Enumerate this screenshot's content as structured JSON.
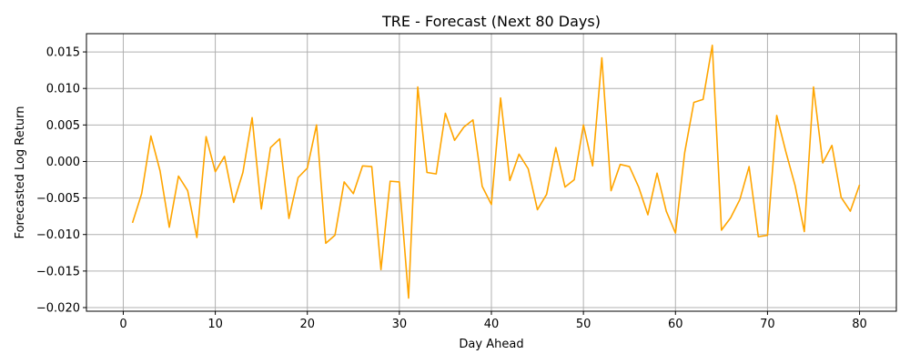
{
  "chart_data": {
    "type": "line",
    "title": "TRE - Forecast (Next 80 Days)",
    "xlabel": "Day Ahead",
    "ylabel": "Forecasted Log Return",
    "xlim": [
      -4,
      84
    ],
    "ylim": [
      -0.0205,
      0.0175
    ],
    "xticks": [
      0,
      10,
      20,
      30,
      40,
      50,
      60,
      70,
      80
    ],
    "xtick_labels": [
      "0",
      "10",
      "20",
      "30",
      "40",
      "50",
      "60",
      "70",
      "80"
    ],
    "yticks": [
      -0.02,
      -0.015,
      -0.01,
      -0.005,
      0.0,
      0.005,
      0.01,
      0.015
    ],
    "ytick_labels": [
      "−0.020",
      "−0.015",
      "−0.010",
      "−0.005",
      "0.000",
      "0.005",
      "0.010",
      "0.015"
    ],
    "grid": true,
    "line_color": "#ffa500",
    "series": [
      {
        "x": [
          1,
          2,
          3,
          4,
          5,
          6,
          7,
          8,
          9,
          10,
          11,
          12,
          13,
          14,
          15,
          16,
          17,
          18,
          19,
          20,
          21,
          22,
          23,
          24,
          25,
          26,
          27,
          28,
          29,
          30,
          31,
          32,
          33,
          34,
          35,
          36,
          37,
          38,
          39,
          40,
          41,
          42,
          43,
          44,
          45,
          46,
          47,
          48,
          49,
          50,
          51,
          52,
          53,
          54,
          55,
          56,
          57,
          58,
          59,
          60,
          61,
          62,
          63,
          64,
          65,
          66,
          67,
          68,
          69,
          70,
          71,
          72,
          73,
          74,
          75,
          76,
          77,
          78,
          79,
          80
        ],
        "values": [
          -0.0084,
          -0.0044,
          0.0035,
          -0.0013,
          -0.009,
          -0.002,
          -0.004,
          -0.0104,
          0.0034,
          -0.0014,
          0.0007,
          -0.0056,
          -0.0015,
          0.006,
          -0.0065,
          0.0019,
          0.0031,
          -0.0078,
          -0.0022,
          -0.0009,
          0.005,
          -0.0112,
          -0.0101,
          -0.0028,
          -0.0044,
          -0.0006,
          -0.0007,
          -0.0148,
          -0.0027,
          -0.0028,
          -0.0187,
          0.0102,
          -0.0015,
          -0.0017,
          0.0066,
          0.0029,
          0.0047,
          0.0057,
          -0.0034,
          -0.0059,
          0.0087,
          -0.0026,
          0.001,
          -0.001,
          -0.0066,
          -0.0045,
          0.0019,
          -0.0035,
          -0.0025,
          0.005,
          -0.0006,
          0.0142,
          -0.004,
          -0.0004,
          -0.0007,
          -0.0035,
          -0.0073,
          -0.0016,
          -0.0068,
          -0.0098,
          0.0012,
          0.0081,
          0.0085,
          0.0159,
          -0.0094,
          -0.0077,
          -0.0052,
          -0.0007,
          -0.0103,
          -0.0101,
          0.0063,
          0.0013,
          -0.0033,
          -0.0096,
          0.0102,
          -0.0002,
          0.0022,
          -0.0049,
          -0.0068,
          -0.0032
        ]
      }
    ]
  }
}
